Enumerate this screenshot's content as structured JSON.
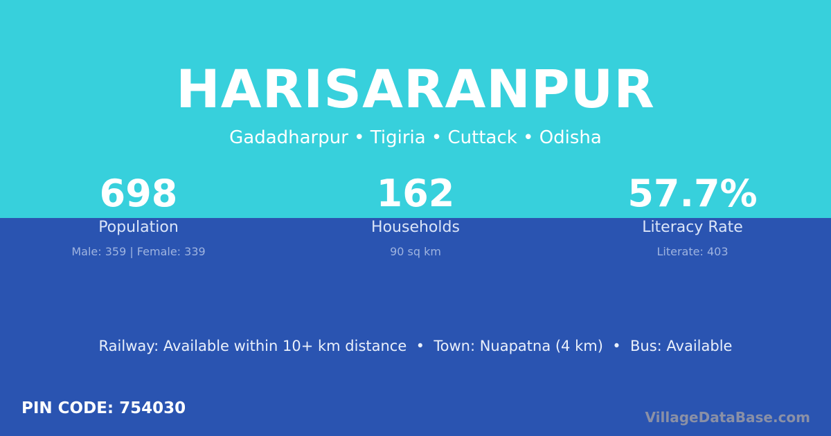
{
  "colors": {
    "top_band": "#37d0dc",
    "bottom_band": "#2a54b1"
  },
  "title": "HARISARANPUR",
  "subtitle": "Gadadharpur • Tigiria • Cuttack • Odisha",
  "stats": [
    {
      "value": "698",
      "label": "Population",
      "sub": "Male: 359 | Female: 339"
    },
    {
      "value": "162",
      "label": "Households",
      "sub": "90 sq km"
    },
    {
      "value": "57.7%",
      "label": "Literacy Rate",
      "sub": "Literate: 403"
    }
  ],
  "facts": "Railway: Available within 10+ km distance  •  Town: Nuapatna (4 km)  •  Bus: Available",
  "pin_code": "PIN CODE: 754030",
  "watermark": "VillageDataBase.com"
}
